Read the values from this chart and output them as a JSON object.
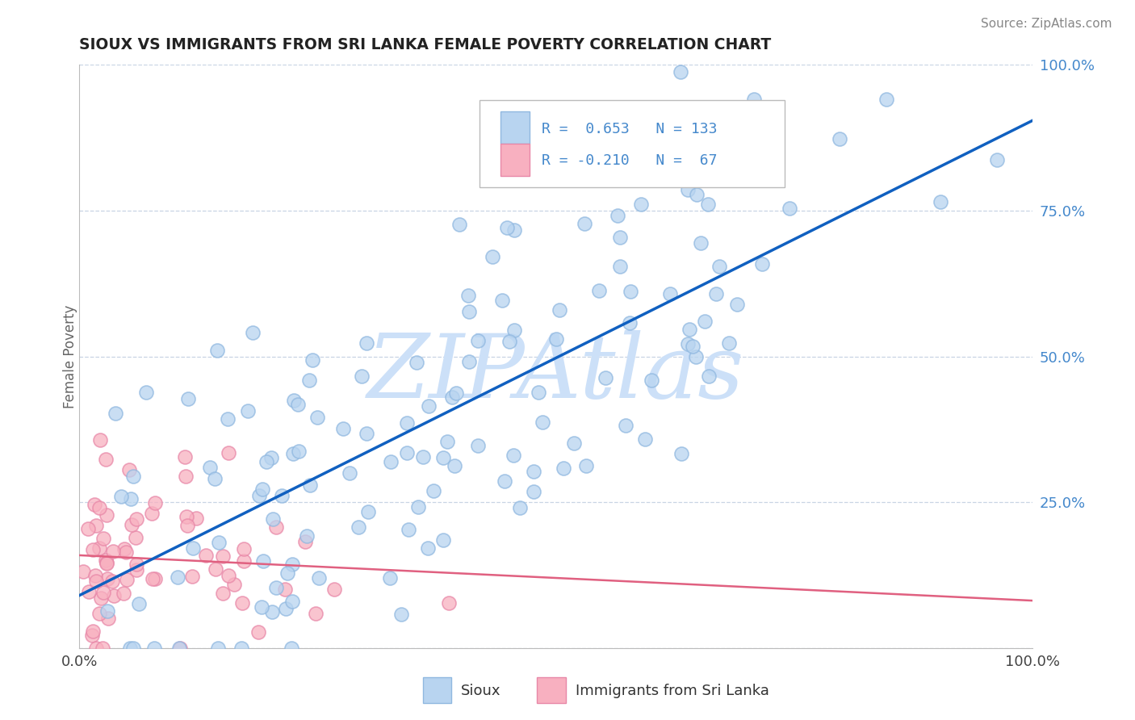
{
  "title": "SIOUX VS IMMIGRANTS FROM SRI LANKA FEMALE POVERTY CORRELATION CHART",
  "source_text": "Source: ZipAtlas.com",
  "ylabel": "Female Poverty",
  "legend_r1": "R =  0.653",
  "legend_n1": "N = 133",
  "legend_r2": "R = -0.210",
  "legend_n2": "N =  67",
  "sioux_color": "#b8d4f0",
  "sioux_edge_color": "#90b8e0",
  "srilanka_color": "#f8b0c0",
  "srilanka_edge_color": "#e888a8",
  "line_sioux_color": "#1060c0",
  "line_srilanka_color": "#e06080",
  "watermark": "ZIPAtlas",
  "watermark_color": "#cce0f8",
  "background_color": "#ffffff",
  "grid_color": "#c8d4e4",
  "title_color": "#222222",
  "source_color": "#888888",
  "tick_color_blue": "#4488cc",
  "ylabel_color": "#666666"
}
